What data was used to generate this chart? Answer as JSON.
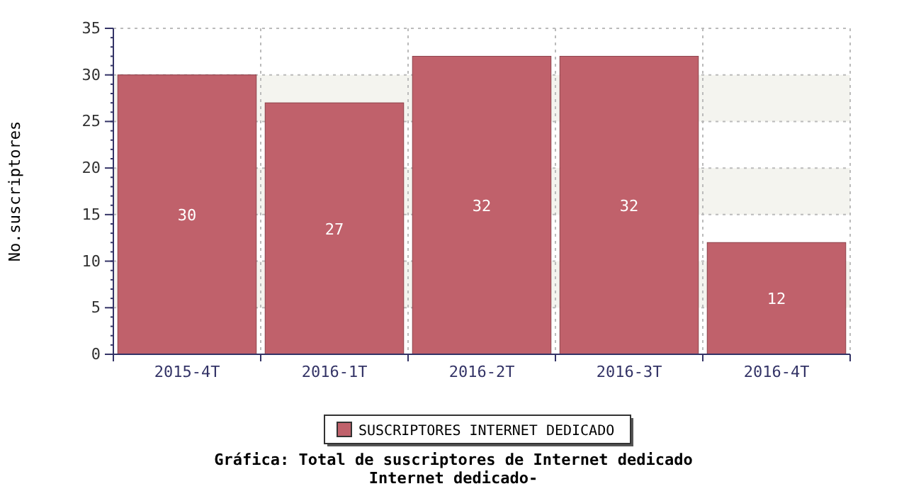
{
  "chart_data": {
    "type": "bar",
    "title": "Gráfica: Total de suscriptores de Internet dedicado",
    "subtitle": "Internet dedicado-",
    "ylabel": "No.suscriptores",
    "categories": [
      "2015-4T",
      "2016-1T",
      "2016-2T",
      "2016-3T",
      "2016-4T"
    ],
    "series": [
      {
        "name": "SUSCRIPTORES INTERNET DEDICADO",
        "color": "#c0616b",
        "values": [
          30,
          27,
          32,
          32,
          12
        ]
      }
    ],
    "ylim": [
      0,
      35
    ],
    "yticks": [
      0,
      5,
      10,
      15,
      20,
      25,
      30,
      35
    ],
    "grid": true,
    "legend": "bottom",
    "data_labels": true
  }
}
